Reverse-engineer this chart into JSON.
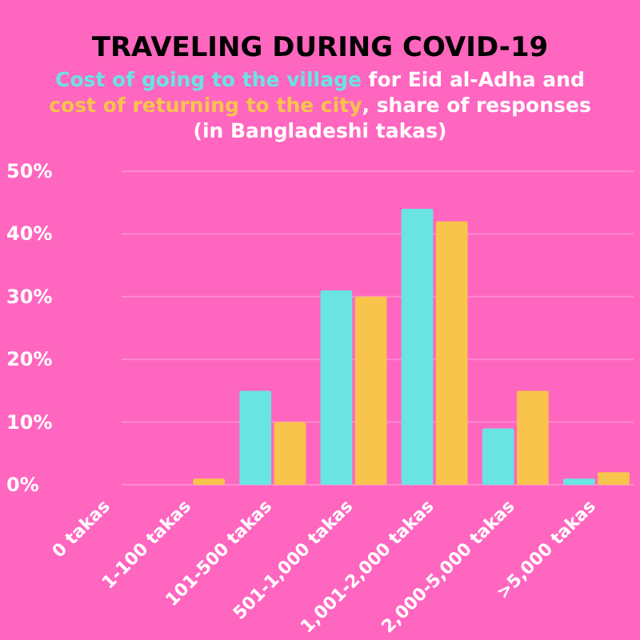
{
  "chart_data": {
    "type": "bar",
    "title": "TRAVELING DURING COVID-19",
    "subtitle": ", share of responses (in Bangladeshi takas)",
    "annotations": [
      "for Eid al-Adha and"
    ],
    "categories": [
      "0 takas",
      "1-100 takas",
      "101-500 takas",
      "501-1,000 takas",
      "1,001-2,000 takas",
      "2,000-5,000 takas",
      ">5,000 takas"
    ],
    "series": [
      {
        "name": "Cost of going to the village",
        "color": "#6ae3e3",
        "values": [
          0,
          0,
          15,
          31,
          44,
          9,
          1
        ]
      },
      {
        "name": "cost of returning to the city",
        "color": "#f8c44c",
        "values": [
          0,
          1,
          10,
          30,
          42,
          15,
          2
        ]
      }
    ],
    "ylim": [
      0,
      50
    ],
    "yticks": [
      {
        "value": 0,
        "label": "0%"
      },
      {
        "value": 10,
        "label": "10%"
      },
      {
        "value": 20,
        "label": "20%"
      },
      {
        "value": 30,
        "label": "30%"
      },
      {
        "value": 40,
        "label": "40%"
      },
      {
        "value": 50,
        "label": "50%"
      }
    ],
    "grid": "y"
  }
}
